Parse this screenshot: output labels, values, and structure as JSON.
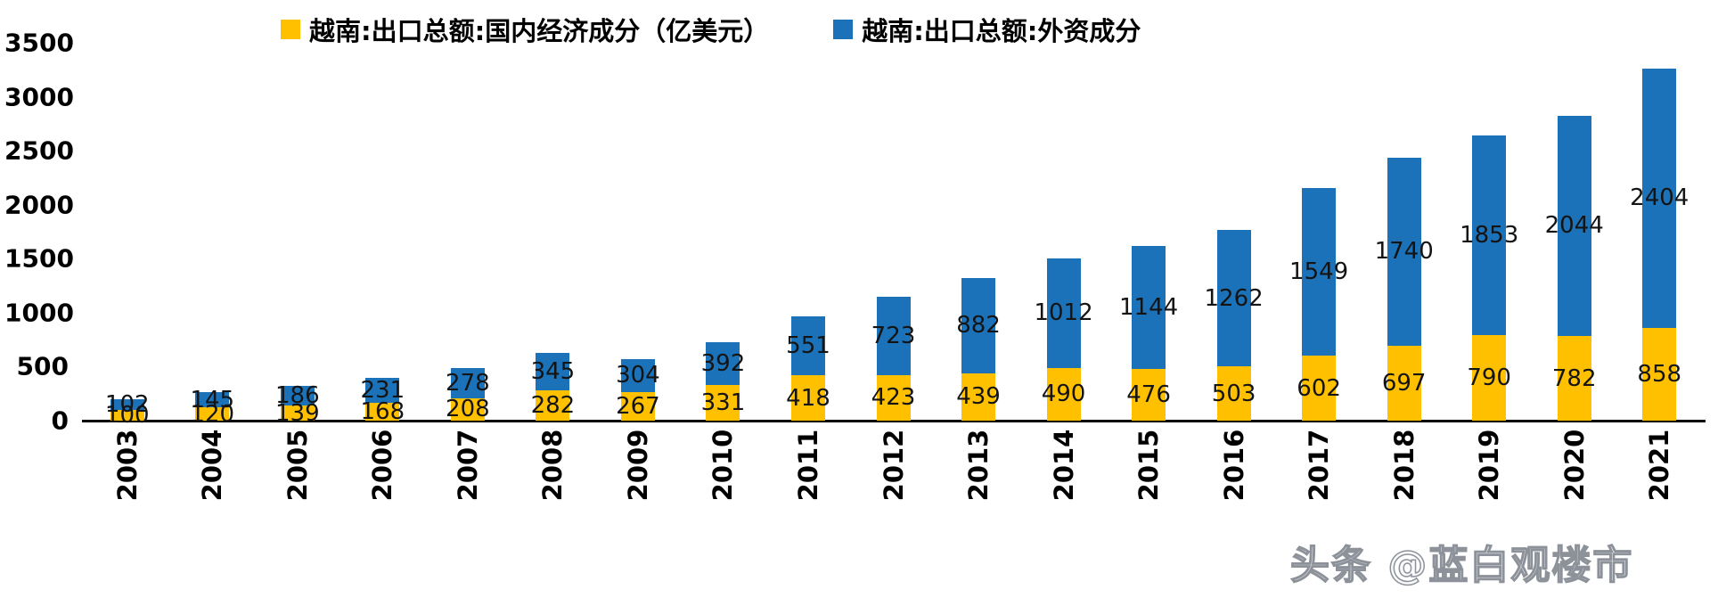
{
  "legend": {
    "items": [
      {
        "label": "越南:出口总额:国内经济成分（亿美元）",
        "color": "#FFC000"
      },
      {
        "label": "越南:出口总额:外资成分",
        "color": "#1C72B8"
      }
    ]
  },
  "watermark": "头条 @蓝白观楼市",
  "chart_data": {
    "type": "bar",
    "stacked": true,
    "title": "",
    "xlabel": "",
    "ylabel": "",
    "categories": [
      "2003",
      "2004",
      "2005",
      "2006",
      "2007",
      "2008",
      "2009",
      "2010",
      "2011",
      "2012",
      "2013",
      "2014",
      "2015",
      "2016",
      "2017",
      "2018",
      "2019",
      "2020",
      "2021"
    ],
    "series": [
      {
        "name": "越南:出口总额:国内经济成分（亿美元）",
        "color": "#FFC000",
        "values": [
          100,
          120,
          139,
          168,
          208,
          282,
          267,
          331,
          418,
          423,
          439,
          490,
          476,
          503,
          602,
          697,
          790,
          782,
          858
        ]
      },
      {
        "name": "越南:出口总额:外资成分",
        "color": "#1C72B8",
        "values": [
          102,
          145,
          186,
          231,
          278,
          345,
          304,
          392,
          551,
          723,
          882,
          1012,
          1144,
          1262,
          1549,
          1740,
          1853,
          2044,
          2404
        ]
      }
    ],
    "ylim": [
      0,
      3500
    ],
    "yticks": [
      0,
      500,
      1000,
      1500,
      2000,
      2500,
      3000,
      3500
    ],
    "grid": false,
    "legend_position": "top",
    "value_labels": true
  }
}
